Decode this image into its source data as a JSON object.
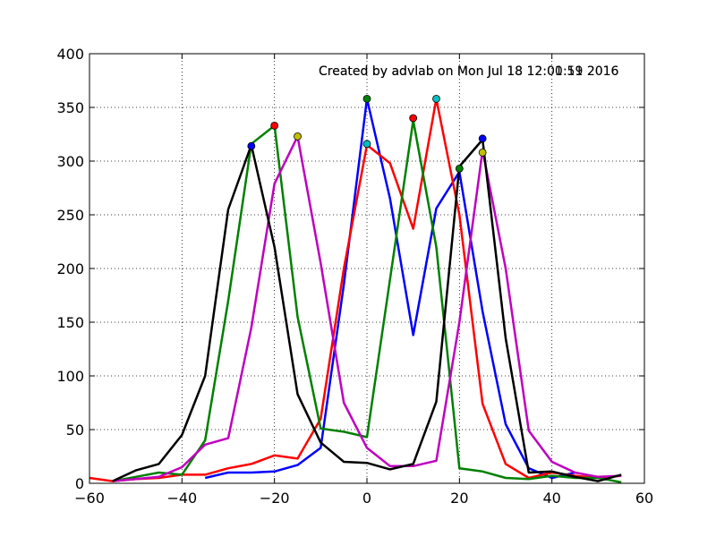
{
  "chart_data": {
    "type": "line",
    "annotations": [
      "Created by advlab on Mon Jul 18 12:01:11 2016",
      "Created by advlab on Mon Jul 18 12:00:59 2016"
    ],
    "xlim": [
      -60,
      60
    ],
    "ylim": [
      0,
      400
    ],
    "xticks": [
      -60,
      -40,
      -20,
      0,
      20,
      40,
      60
    ],
    "yticks": [
      0,
      50,
      100,
      150,
      200,
      250,
      300,
      350,
      400
    ],
    "xtick_labels": [
      "−60",
      "−40",
      "−20",
      "0",
      "20",
      "40",
      "60"
    ],
    "ytick_labels": [
      "0",
      "50",
      "100",
      "150",
      "200",
      "250",
      "300",
      "350",
      "400"
    ],
    "grid": true,
    "series": [
      {
        "color": "#0000ff",
        "x": [
          -35,
          -30,
          -25,
          -20,
          -15,
          -10,
          -5,
          0,
          5,
          10,
          15,
          20,
          25,
          30,
          35,
          40,
          45
        ],
        "y": [
          5,
          10,
          10,
          11,
          17,
          33,
          185,
          358,
          265,
          138,
          256,
          290,
          160,
          55,
          14,
          5,
          10
        ],
        "marker": {
          "x": 25,
          "y": 321,
          "color": "#0000ff"
        }
      },
      {
        "color": "#ff0000",
        "x": [
          -60,
          -55,
          -50,
          -45,
          -40,
          -35,
          -30,
          -25,
          -20,
          -15,
          -10,
          -5,
          0,
          5,
          10,
          15,
          20,
          25,
          30,
          35,
          40,
          45,
          50,
          55
        ],
        "y": [
          5,
          2,
          4,
          5,
          8,
          8,
          14,
          18,
          26,
          23,
          60,
          200,
          315,
          298,
          237,
          358,
          250,
          74,
          18,
          5,
          10,
          7,
          5,
          7
        ],
        "marker": {
          "x": 10,
          "y": 340,
          "color": "#ff0000"
        }
      },
      {
        "color": "#008000",
        "x": [
          -55,
          -50,
          -45,
          -40,
          -35,
          -30,
          -25,
          -20,
          -15,
          -10,
          -5,
          0,
          5,
          10,
          15,
          20,
          25,
          30,
          35,
          40,
          45,
          50,
          55
        ],
        "y": [
          2,
          6,
          10,
          8,
          40,
          170,
          316,
          333,
          155,
          51,
          48,
          43,
          190,
          338,
          220,
          14,
          11,
          5,
          4,
          7,
          5,
          5,
          1
        ],
        "marker": {
          "x": 0,
          "y": 358,
          "color": "#008000"
        }
      },
      {
        "color": "#bf00bf",
        "x": [
          -55,
          -50,
          -45,
          -40,
          -35,
          -30,
          -25,
          -20,
          -15,
          -10,
          -5,
          0,
          5,
          10,
          15,
          20,
          25,
          30,
          35,
          40,
          45,
          50,
          55
        ],
        "y": [
          2,
          4,
          6,
          15,
          36,
          42,
          145,
          279,
          323,
          205,
          75,
          33,
          16,
          16,
          21,
          150,
          310,
          200,
          49,
          20,
          10,
          6,
          7
        ],
        "marker": {
          "x": -15,
          "y": 323,
          "color": "#bfbf00"
        }
      },
      {
        "color": "#000000",
        "x": [
          -55,
          -50,
          -45,
          -40,
          -35,
          -30,
          -25,
          -20,
          -15,
          -10,
          -5,
          0,
          5,
          10,
          15,
          20,
          25,
          30,
          35,
          40,
          45,
          50,
          55
        ],
        "y": [
          2,
          12,
          18,
          45,
          100,
          255,
          315,
          220,
          83,
          38,
          20,
          19,
          13,
          18,
          76,
          295,
          320,
          135,
          10,
          11,
          6,
          2,
          8
        ],
        "marker": {
          "x": -25,
          "y": 314,
          "color": "#0000ff"
        }
      }
    ],
    "extra_markers": [
      {
        "x": -20,
        "y": 333,
        "color": "#ff0000"
      },
      {
        "x": 0,
        "y": 316,
        "color": "#00bfbf"
      },
      {
        "x": 15,
        "y": 358,
        "color": "#00bfbf"
      },
      {
        "x": 20,
        "y": 293,
        "color": "#008000"
      },
      {
        "x": 25,
        "y": 308,
        "color": "#bfbf00"
      }
    ]
  }
}
